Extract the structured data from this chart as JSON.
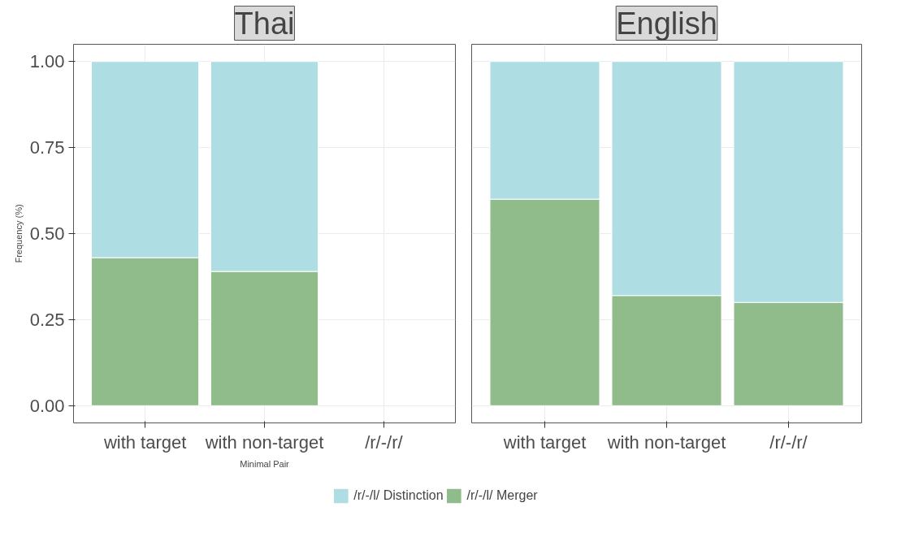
{
  "chart_data": [
    {
      "type": "bar",
      "title": "Thai",
      "stacked": true,
      "ylabel": "Frequency (%)",
      "xlabel": "Minimal Pair",
      "categories": [
        "with target",
        "with non-target",
        "/r/-/r/"
      ],
      "ylim": [
        -0.05,
        1.05
      ],
      "yticks": [
        {
          "value": 0,
          "label": "0.00"
        },
        {
          "value": 0.25,
          "label": "0.25"
        },
        {
          "value": 0.5,
          "label": "0.50"
        },
        {
          "value": 0.75,
          "label": "0.75"
        },
        {
          "value": 1,
          "label": "1.00"
        }
      ],
      "grid": true,
      "legend": "bottom",
      "series": [
        {
          "name": "/r/-/l/ Merger",
          "color": "#8fbc8a",
          "values": [
            0.43,
            0.39,
            null
          ]
        },
        {
          "name": "/r/-/l/ Distinction",
          "color": "#aedde3",
          "values": [
            0.57,
            0.61,
            null
          ]
        }
      ]
    },
    {
      "type": "bar",
      "title": "English",
      "stacked": true,
      "categories": [
        "with target",
        "with non-target",
        "/r/-/r/"
      ],
      "ylim": [
        -0.05,
        1.05
      ],
      "yticks": [
        0,
        0.25,
        0.5,
        0.75,
        1
      ],
      "grid": true,
      "tick_labels": "x",
      "series": [
        {
          "color": "#8fbc8a",
          "values": [
            0.6,
            0.32,
            0.3
          ]
        },
        {
          "color": "#aedde3",
          "values": [
            0.4,
            0.68,
            0.7
          ]
        }
      ]
    }
  ]
}
